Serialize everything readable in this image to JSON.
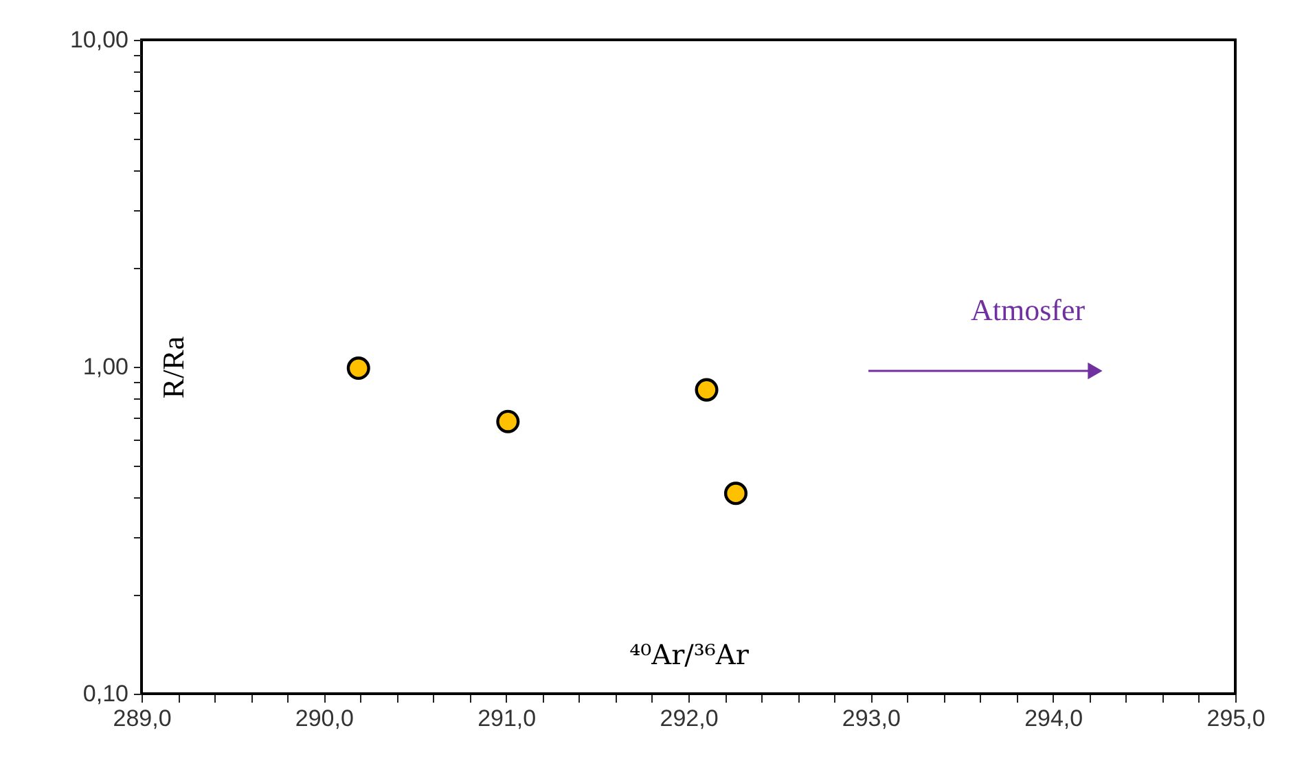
{
  "chart_data": {
    "type": "scatter",
    "xlabel": "⁴⁰Ar/³⁶Ar",
    "ylabel": "R/Ra",
    "x": [
      290.19,
      291.01,
      292.1,
      292.26
    ],
    "series": [
      {
        "color": "#ffc000",
        "values": [
          0.99,
          0.68,
          0.85,
          0.41
        ]
      }
    ],
    "marker": "circle",
    "log": true,
    "grid": false,
    "xlim": [
      289,
      295
    ],
    "ylim": [
      0.1,
      10
    ],
    "xticks": [
      {
        "value": 289,
        "label": "289,0"
      },
      {
        "value": 289.2,
        "label": null
      },
      {
        "value": 289.4,
        "label": null
      },
      {
        "value": 289.6,
        "label": null
      },
      {
        "value": 289.8,
        "label": null
      },
      {
        "value": 290,
        "label": "290,0"
      },
      {
        "value": 290.2,
        "label": null
      },
      {
        "value": 290.4,
        "label": null
      },
      {
        "value": 290.6,
        "label": null
      },
      {
        "value": 290.8,
        "label": null
      },
      {
        "value": 291,
        "label": "291,0"
      },
      {
        "value": 291.2,
        "label": null
      },
      {
        "value": 291.4,
        "label": null
      },
      {
        "value": 291.6,
        "label": null
      },
      {
        "value": 291.8,
        "label": null
      },
      {
        "value": 292,
        "label": "292,0"
      },
      {
        "value": 292.2,
        "label": null
      },
      {
        "value": 292.4,
        "label": null
      },
      {
        "value": 292.6,
        "label": null
      },
      {
        "value": 292.8,
        "label": null
      },
      {
        "value": 293,
        "label": "293,0"
      },
      {
        "value": 293.2,
        "label": null
      },
      {
        "value": 293.4,
        "label": null
      },
      {
        "value": 293.6,
        "label": null
      },
      {
        "value": 293.8,
        "label": null
      },
      {
        "value": 294,
        "label": "294,0"
      },
      {
        "value": 294.2,
        "label": null
      },
      {
        "value": 294.4,
        "label": null
      },
      {
        "value": 294.6,
        "label": null
      },
      {
        "value": 294.8,
        "label": null
      },
      {
        "value": 295,
        "label": "295,0"
      }
    ],
    "yticks": [
      {
        "value": 0.1,
        "label": "0,10"
      },
      {
        "value": 0.2,
        "label": null
      },
      {
        "value": 0.3,
        "label": null
      },
      {
        "value": 0.4,
        "label": null
      },
      {
        "value": 0.5,
        "label": null
      },
      {
        "value": 0.6,
        "label": null
      },
      {
        "value": 0.7,
        "label": null
      },
      {
        "value": 0.8,
        "label": null
      },
      {
        "value": 0.9,
        "label": null
      },
      {
        "value": 1,
        "label": "1,00"
      },
      {
        "value": 2,
        "label": null
      },
      {
        "value": 3,
        "label": null
      },
      {
        "value": 4,
        "label": null
      },
      {
        "value": 5,
        "label": null
      },
      {
        "value": 6,
        "label": null
      },
      {
        "value": 7,
        "label": null
      },
      {
        "value": 8,
        "label": null
      },
      {
        "value": 9,
        "label": null
      },
      {
        "value": 10,
        "label": "10,00"
      }
    ],
    "annotations": [
      "Atmosfer"
    ]
  }
}
